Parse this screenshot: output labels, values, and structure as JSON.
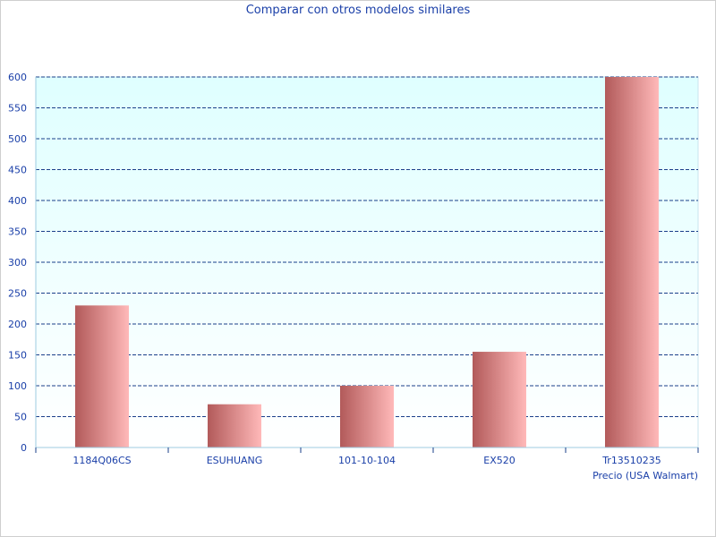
{
  "chart_data": {
    "type": "bar",
    "title": "Comparar con otros modelos similares",
    "xlabel": "Precio (USA Walmart)",
    "ylabel": "",
    "categories": [
      "1184Q06CS",
      "ESUHUANG",
      "101-10-104",
      "EX520",
      "Tr13510235"
    ],
    "values": [
      230,
      70,
      100,
      155,
      600
    ],
    "ylim": [
      0,
      600
    ],
    "yticks": [
      0,
      50,
      100,
      150,
      200,
      250,
      300,
      350,
      400,
      450,
      500,
      550,
      600
    ],
    "grid": true,
    "legend": "none",
    "colors": {
      "bar_dark": "#b25a5a",
      "bar_light": "#ffb9b9",
      "plot_bg_top": "#dfffff",
      "plot_bg_bottom": "#ffffff",
      "grid": "#1a3f8a",
      "text": "#1a3fa8",
      "axis": "#9ecbe0"
    }
  }
}
